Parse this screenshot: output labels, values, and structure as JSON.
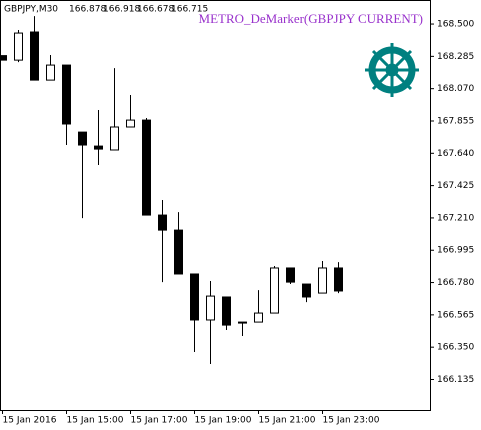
{
  "chart_data": {
    "type": "candlestick",
    "symbol": "GBPJPY,M30",
    "header_prices": [
      166.878,
      166.918,
      166.678,
      166.715
    ],
    "indicator_label": "METRO_DeMarker(GBPJPY CURRENT)",
    "categories": [
      "15 Jan 2016",
      null,
      null,
      null,
      "15 Jan 15:00",
      null,
      null,
      null,
      "15 Jan 17:00",
      null,
      null,
      null,
      "15 Jan 19:00",
      null,
      null,
      null,
      "15 Jan 21:00",
      null,
      null,
      null,
      "15 Jan 23:00",
      null
    ],
    "open": [
      168.29,
      168.26,
      168.447,
      168.127,
      168.227,
      167.781,
      167.688,
      167.662,
      167.815,
      167.861,
      167.229,
      167.129,
      166.837,
      166.531,
      166.684,
      166.517,
      166.517,
      166.577,
      166.877,
      166.77,
      166.71,
      166.877
    ],
    "high": [
      168.29,
      168.46,
      168.553,
      168.294,
      168.227,
      167.781,
      167.928,
      168.207,
      168.028,
      167.875,
      167.329,
      167.249,
      166.837,
      166.79,
      166.684,
      166.517,
      166.73,
      166.89,
      166.877,
      166.77,
      166.923,
      166.916
    ],
    "low": [
      168.26,
      168.247,
      168.127,
      168.127,
      167.695,
      167.209,
      167.562,
      167.662,
      167.815,
      167.229,
      166.783,
      166.837,
      166.318,
      166.238,
      166.464,
      166.424,
      166.517,
      166.577,
      166.77,
      166.65,
      166.71,
      166.71
    ],
    "close": [
      168.26,
      168.44,
      168.127,
      168.227,
      167.835,
      167.695,
      167.668,
      167.815,
      167.861,
      167.229,
      167.129,
      166.837,
      166.531,
      166.69,
      166.497,
      166.511,
      166.577,
      166.877,
      166.783,
      166.684,
      166.877,
      166.724
    ],
    "up_color": "#ffffff",
    "down_color": "#000000",
    "ylim": [
      165.932,
      168.66
    ],
    "yticks": [
      {
        "value": 168.5,
        "label": "168.500"
      },
      168.285,
      {
        "value": 168.07,
        "label": "168.070"
      },
      167.855,
      {
        "value": 167.64,
        "label": "167.640"
      },
      167.425,
      {
        "value": 167.21,
        "label": "167.210"
      },
      166.995,
      {
        "value": 166.78,
        "label": "166.780"
      },
      166.565,
      {
        "value": 166.35,
        "label": "166.350"
      },
      166.135
    ]
  }
}
